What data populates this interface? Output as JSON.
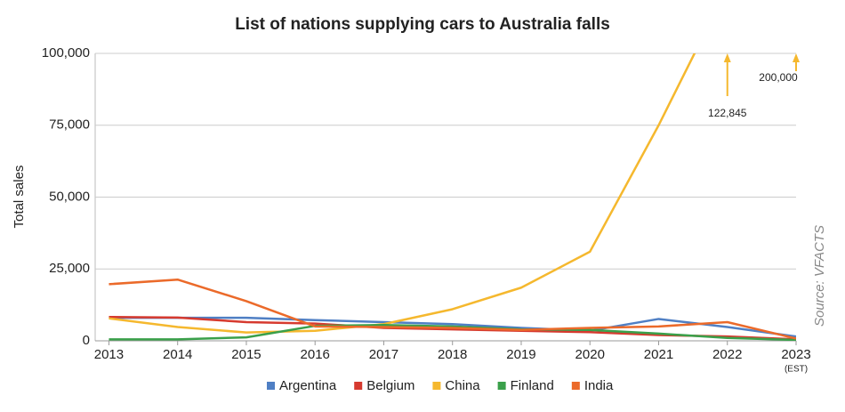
{
  "chart_data": {
    "type": "line",
    "title": "List of nations supplying cars to Australia falls",
    "y_label": "Total sales",
    "source": "Source: VFACTS",
    "x_annotation": "(EST)",
    "x": [
      2013,
      2014,
      2015,
      2016,
      2017,
      2018,
      2019,
      2020,
      2021,
      2022,
      2023
    ],
    "xlim": [
      2012.8,
      2023
    ],
    "xticks": [
      2013,
      2014,
      2015,
      2016,
      2017,
      2018,
      2019,
      2020,
      2021,
      2022,
      2023
    ],
    "ylim": [
      0,
      100000
    ],
    "yticks": [
      {
        "value": 0,
        "label": "0"
      },
      {
        "value": 25000,
        "label": "25,000"
      },
      {
        "value": 50000,
        "label": "50,000"
      },
      {
        "value": 75000,
        "label": "75,000"
      },
      {
        "value": 100000,
        "label": "100,000"
      }
    ],
    "grid": true,
    "legend": "bottom",
    "series": [
      {
        "name": "Argentina",
        "color": "#4f7fc4",
        "values": [
          8000,
          8000,
          8000,
          7200,
          6500,
          5800,
          4500,
          3500,
          7600,
          4800,
          1500
        ]
      },
      {
        "name": "Belgium",
        "color": "#d63a2f",
        "values": [
          8300,
          8100,
          6500,
          6000,
          4500,
          4000,
          3500,
          3000,
          2000,
          1500,
          500
        ]
      },
      {
        "name": "China",
        "color": "#f5b82e",
        "values": [
          7800,
          4800,
          2900,
          3500,
          5800,
          11000,
          18500,
          31000,
          75000,
          122845,
          200000
        ],
        "value_labels": [
          null,
          null,
          null,
          null,
          null,
          null,
          null,
          null,
          null,
          "122,845",
          "200,000"
        ]
      },
      {
        "name": "Finland",
        "color": "#3aa04a",
        "values": [
          500,
          500,
          1200,
          5200,
          5500,
          5000,
          4000,
          3800,
          2500,
          1000,
          300
        ]
      },
      {
        "name": "India",
        "color": "#eb6a2a",
        "values": [
          19700,
          21300,
          13800,
          5000,
          4800,
          4500,
          3800,
          4500,
          5000,
          6500,
          800
        ]
      }
    ]
  }
}
